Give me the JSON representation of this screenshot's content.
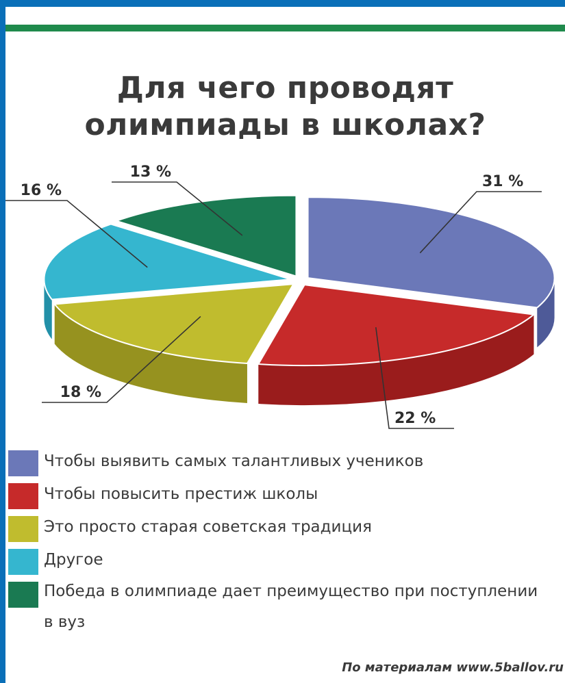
{
  "chart_data": {
    "type": "pie",
    "title_lines": [
      "Для чего проводят",
      "олимпиады в школах?"
    ],
    "slices": [
      {
        "label": "Чтобы выявить самых талантливых учеников",
        "value": 31,
        "value_label": "31 %",
        "color": "#6b78b8",
        "side": "#4e5a98"
      },
      {
        "label": "Чтобы повысить престиж школы",
        "value": 22,
        "value_label": "22 %",
        "color": "#c62a2a",
        "side": "#9a1c1c"
      },
      {
        "label": "Это просто старая советская традиция",
        "value": 18,
        "value_label": "18 %",
        "color": "#c0bc2e",
        "side": "#96921f"
      },
      {
        "label": "Другое",
        "value": 16,
        "value_label": "16 %",
        "color": "#35b6cf",
        "side": "#2290a8"
      },
      {
        "label": "Победа в олимпиаде дает преимущество при поступлении в вуз",
        "value": 13,
        "value_label": "13 %",
        "color": "#1a7a52",
        "side": "#115a3b"
      }
    ],
    "legend_position": "bottom"
  },
  "source": "По материалам www.5ballov.ru",
  "colors": {
    "frame": "#0a6fb8",
    "rule": "#1f8a4c"
  }
}
